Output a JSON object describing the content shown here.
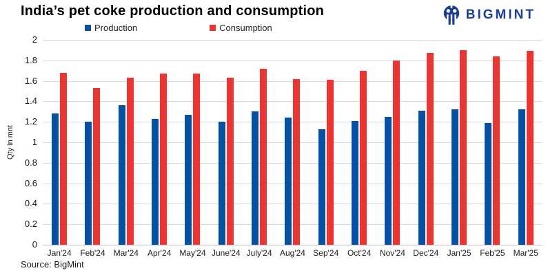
{
  "header": {
    "title": "India’s pet coke production and consumption",
    "logo_text": "BIGMINT"
  },
  "chart_data": {
    "type": "bar",
    "title": "India’s pet coke production and consumption",
    "xlabel": "",
    "ylabel": "Qty in mnt",
    "ylim": [
      0,
      2
    ],
    "ytick_labels": [
      "0",
      "0.2",
      "0.4",
      "0.6",
      "0.8",
      "1",
      "1.2",
      "1.4",
      "1.6",
      "1.8",
      "2"
    ],
    "grid": true,
    "legend_position": "top",
    "categories": [
      "Jan'24",
      "Feb'24",
      "Mar'24",
      "Apr'24",
      "May'24",
      "June'24",
      "July'24",
      "Aug'24",
      "Sep'24",
      "Oct'24",
      "Nov'24",
      "Dec'24",
      "Jan'25",
      "Feb'25",
      "Mar'25"
    ],
    "series": [
      {
        "name": "Production",
        "color": "#0450a5",
        "values": [
          1.28,
          1.2,
          1.36,
          1.23,
          1.27,
          1.2,
          1.3,
          1.24,
          1.13,
          1.21,
          1.25,
          1.31,
          1.32,
          1.19,
          1.32
        ]
      },
      {
        "name": "Consumption",
        "color": "#ee3431",
        "values": [
          1.68,
          1.53,
          1.63,
          1.67,
          1.67,
          1.63,
          1.72,
          1.62,
          1.61,
          1.7,
          1.8,
          1.87,
          1.9,
          1.84,
          1.89
        ]
      }
    ]
  },
  "footer": {
    "source": "Source: BigMint"
  },
  "colors": {
    "production": "#0450a5",
    "consumption": "#ee3431",
    "logo_navy": "#1b3f94",
    "gridline": "#d9d9d9",
    "axis_line": "#bfbfbf"
  }
}
